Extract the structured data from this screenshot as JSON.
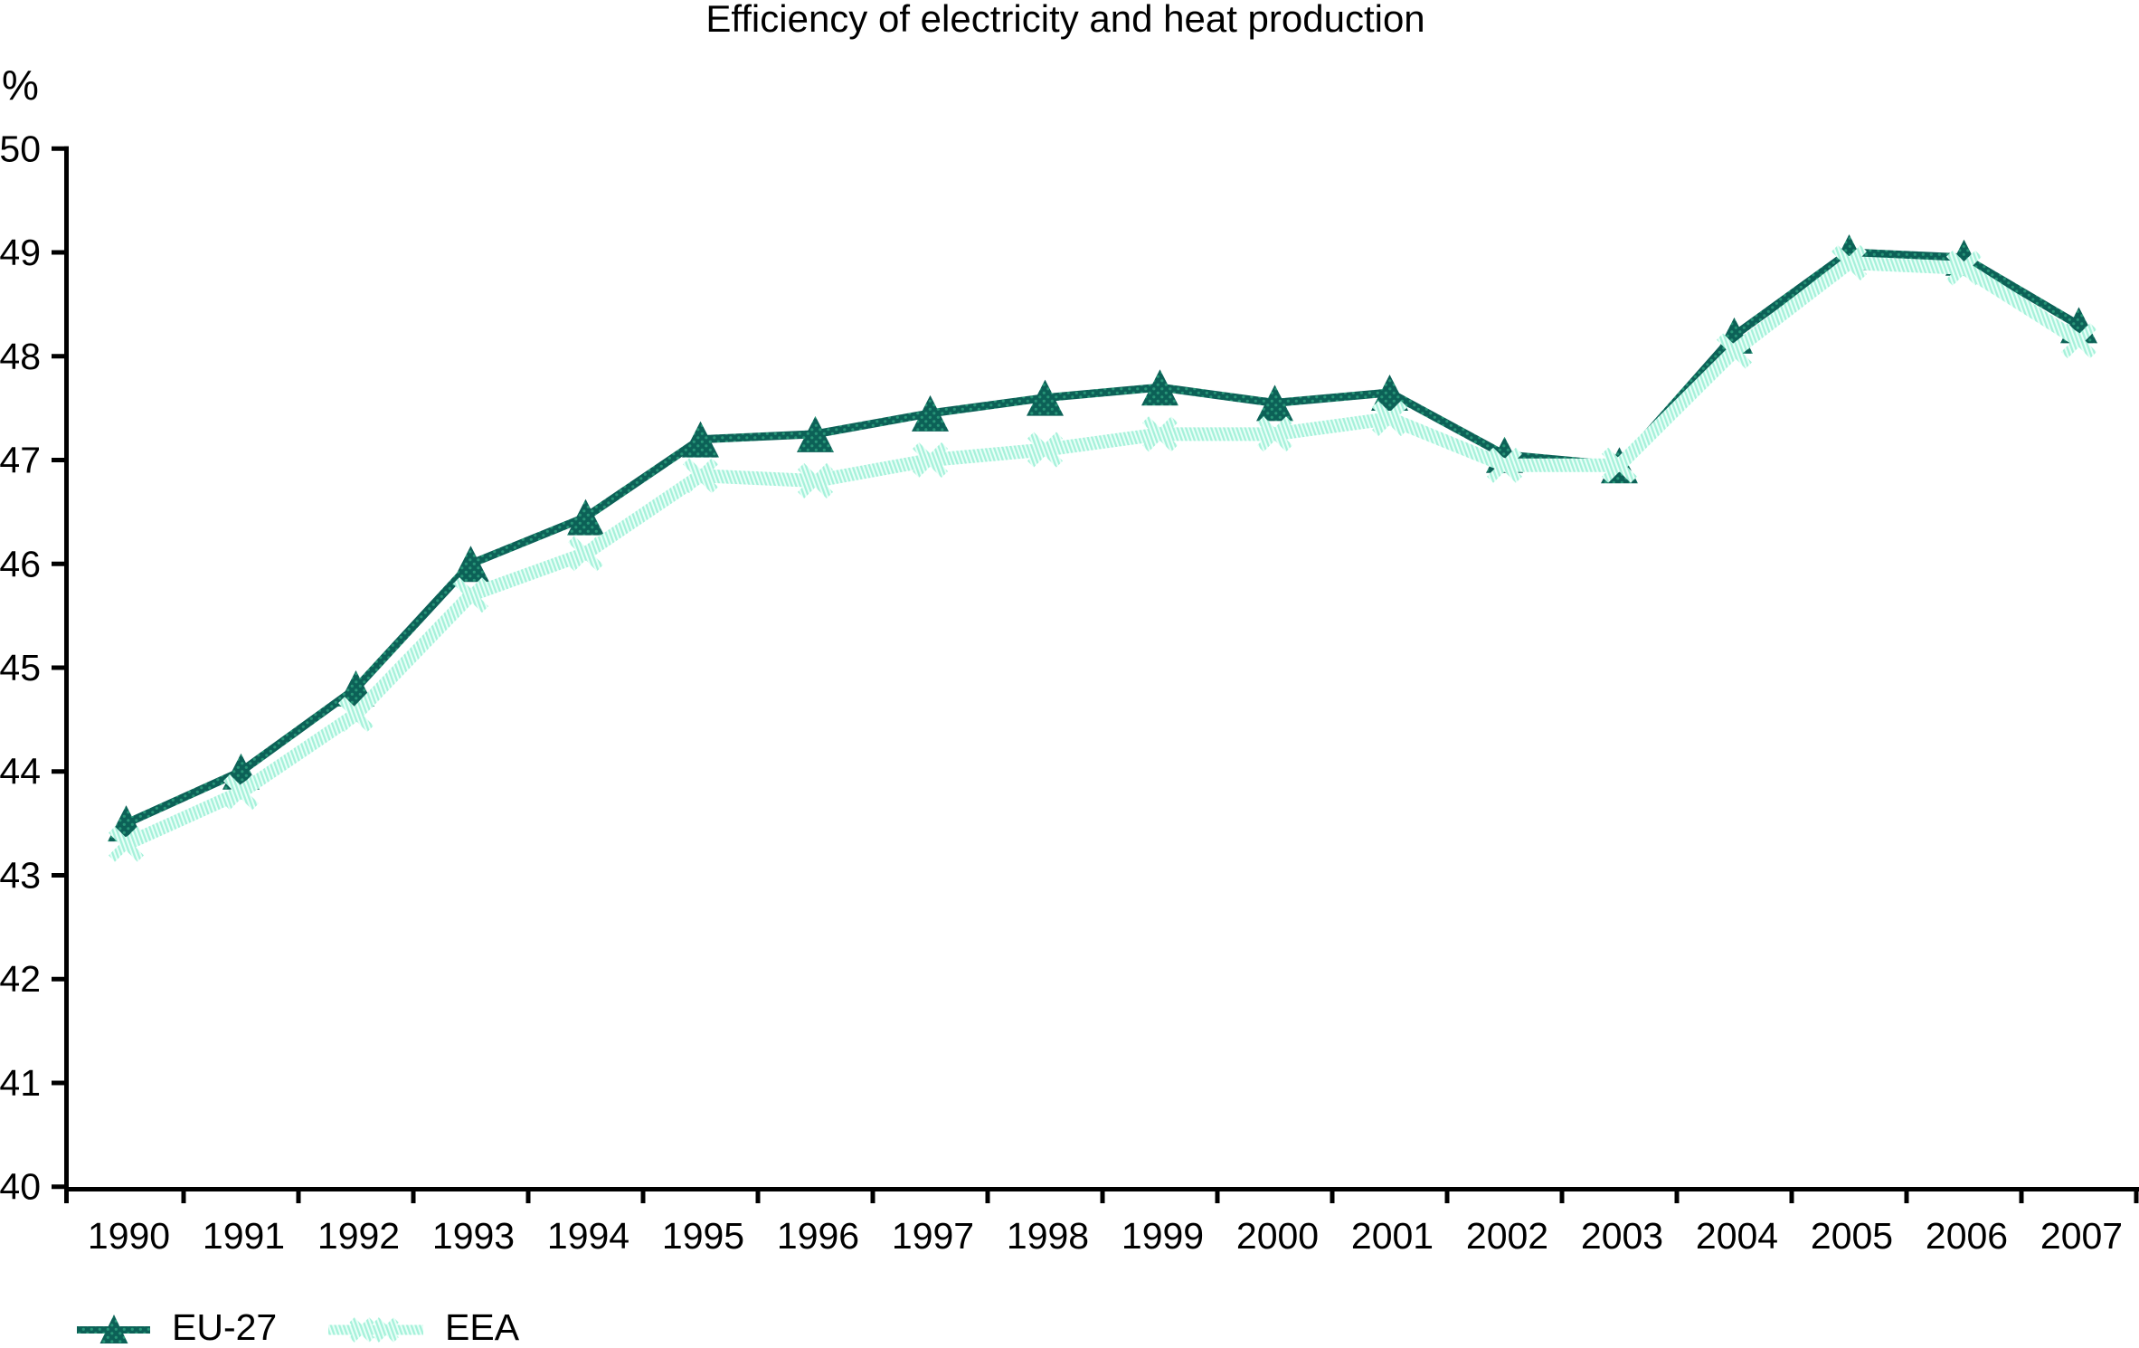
{
  "chart_data": {
    "type": "line",
    "title": "Efficiency of electricity and heat production",
    "xlabel": "",
    "ylabel": "%",
    "ylim": [
      40,
      50
    ],
    "ytick_step": 1,
    "grid": false,
    "legend_position": "bottom-left",
    "background_color": "#ffffff",
    "axis_color": "#000000",
    "categories": [
      "1990",
      "1991",
      "1992",
      "1993",
      "1994",
      "1995",
      "1996",
      "1997",
      "1998",
      "1999",
      "2000",
      "2001",
      "2002",
      "2003",
      "2004",
      "2005",
      "2006",
      "2007"
    ],
    "series": [
      {
        "name": "EU-27",
        "marker": "triangle",
        "color": "#0c6157",
        "pattern_dot_color": "#279577",
        "values": [
          43.5,
          44.0,
          44.8,
          46.0,
          46.45,
          47.2,
          47.25,
          47.45,
          47.6,
          47.7,
          47.55,
          47.65,
          47.05,
          46.95,
          48.2,
          49.0,
          48.95,
          48.3
        ]
      },
      {
        "name": "EEA",
        "marker": "x",
        "color": "#a5f1da",
        "pattern_stripe_color": "#e9fff8",
        "values": [
          43.3,
          43.8,
          44.55,
          45.7,
          46.1,
          46.85,
          46.8,
          47.0,
          47.1,
          47.25,
          47.25,
          47.4,
          46.95,
          46.95,
          48.05,
          48.9,
          48.85,
          48.15
        ]
      }
    ]
  }
}
